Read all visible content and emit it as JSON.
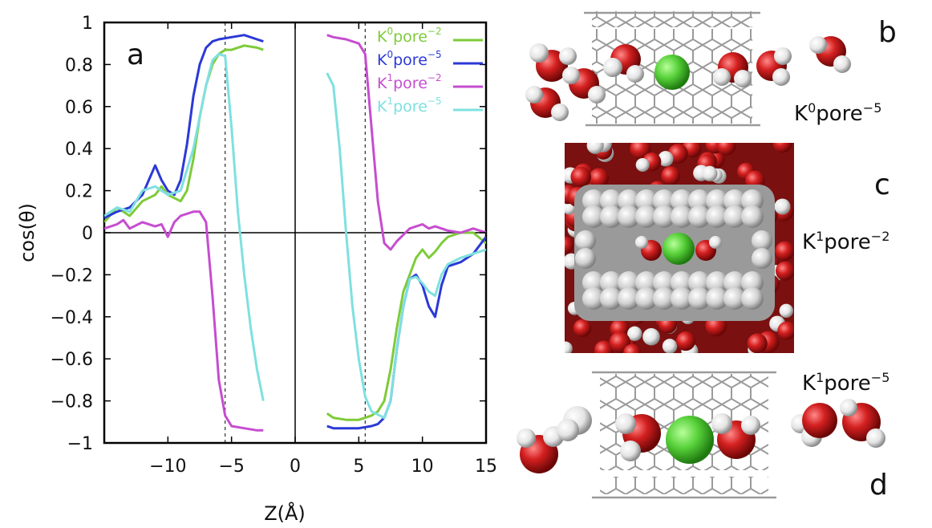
{
  "chart_data": {
    "type": "line",
    "panel_letter": "a",
    "xlabel": "Z(Å)",
    "ylabel": "cos(θ)",
    "xlim": [
      -15,
      15
    ],
    "ylim": [
      -1,
      1
    ],
    "xticks": [
      -10,
      -5,
      0,
      5,
      10,
      15
    ],
    "xtick_labels": [
      "−10",
      "−5",
      "0",
      "5",
      "10",
      "15"
    ],
    "yticks": [
      1,
      0.8,
      0.6,
      0.4,
      0.2,
      0,
      -0.2,
      -0.4,
      -0.6,
      -0.8,
      -1
    ],
    "ytick_labels": [
      "1",
      "0.8",
      "0.6",
      "0.4",
      "0.2",
      "0",
      "−0.2",
      "−0.4",
      "−0.6",
      "−0.8",
      "−1"
    ],
    "reference_lines": {
      "zero_x": 0,
      "zero_y": 0,
      "dashed_x": [
        -5.5,
        5.5
      ]
    },
    "legend_position": "top-right",
    "series": [
      {
        "name": "K0pore−2",
        "label_base": "K",
        "label_sup": "0",
        "label_rest": "pore",
        "label_sup2": "−2",
        "color": "#7ecb3a",
        "segments": [
          [
            [
              -15,
              0.05
            ],
            [
              -14,
              0.12
            ],
            [
              -13,
              0.08
            ],
            [
              -12,
              0.15
            ],
            [
              -11,
              0.18
            ],
            [
              -10.5,
              0.22
            ],
            [
              -10,
              0.18
            ],
            [
              -9,
              0.15
            ],
            [
              -8.5,
              0.2
            ],
            [
              -8,
              0.35
            ],
            [
              -7.5,
              0.55
            ],
            [
              -7,
              0.7
            ],
            [
              -6.5,
              0.8
            ],
            [
              -6,
              0.85
            ],
            [
              -5.5,
              0.87
            ],
            [
              -5,
              0.87
            ],
            [
              -4.5,
              0.88
            ],
            [
              -4,
              0.89
            ],
            [
              -3,
              0.88
            ],
            [
              -2.5,
              0.87
            ]
          ],
          [
            [
              2.5,
              -0.86
            ],
            [
              3,
              -0.88
            ],
            [
              4,
              -0.89
            ],
            [
              5,
              -0.89
            ],
            [
              6,
              -0.87
            ],
            [
              6.5,
              -0.85
            ],
            [
              7,
              -0.8
            ],
            [
              7.5,
              -0.65
            ],
            [
              8,
              -0.45
            ],
            [
              8.5,
              -0.28
            ],
            [
              9,
              -0.2
            ],
            [
              9.5,
              -0.12
            ],
            [
              10,
              -0.08
            ],
            [
              10.5,
              -0.12
            ],
            [
              11,
              -0.09
            ],
            [
              11.5,
              -0.05
            ],
            [
              12,
              -0.02
            ],
            [
              13,
              0.0
            ],
            [
              14,
              0.0
            ],
            [
              15,
              -0.05
            ]
          ]
        ]
      },
      {
        "name": "K0pore−5",
        "label_base": "K",
        "label_sup": "0",
        "label_rest": "pore",
        "label_sup2": "−5",
        "color": "#2b39d6",
        "segments": [
          [
            [
              -15,
              0.07
            ],
            [
              -14,
              0.1
            ],
            [
              -13,
              0.12
            ],
            [
              -12,
              0.18
            ],
            [
              -11.5,
              0.25
            ],
            [
              -11,
              0.32
            ],
            [
              -10.5,
              0.25
            ],
            [
              -10,
              0.2
            ],
            [
              -9.5,
              0.18
            ],
            [
              -9,
              0.25
            ],
            [
              -8.5,
              0.42
            ],
            [
              -8,
              0.65
            ],
            [
              -7.5,
              0.8
            ],
            [
              -7,
              0.88
            ],
            [
              -6.5,
              0.91
            ],
            [
              -6,
              0.92
            ],
            [
              -5,
              0.93
            ],
            [
              -4,
              0.94
            ],
            [
              -3,
              0.92
            ],
            [
              -2.5,
              0.91
            ]
          ],
          [
            [
              2.5,
              -0.92
            ],
            [
              3,
              -0.93
            ],
            [
              4,
              -0.93
            ],
            [
              5,
              -0.93
            ],
            [
              6,
              -0.92
            ],
            [
              6.5,
              -0.91
            ],
            [
              7,
              -0.88
            ],
            [
              7.5,
              -0.8
            ],
            [
              8,
              -0.55
            ],
            [
              8.5,
              -0.35
            ],
            [
              9,
              -0.22
            ],
            [
              9.5,
              -0.2
            ],
            [
              10,
              -0.25
            ],
            [
              10.5,
              -0.35
            ],
            [
              11,
              -0.4
            ],
            [
              11.5,
              -0.25
            ],
            [
              12,
              -0.16
            ],
            [
              13,
              -0.14
            ],
            [
              14,
              -0.1
            ],
            [
              15,
              -0.02
            ]
          ]
        ]
      },
      {
        "name": "K1pore−2",
        "label_base": "K",
        "label_sup": "1",
        "label_rest": "pore",
        "label_sup2": "−2",
        "color": "#c64dd0",
        "segments": [
          [
            [
              -15,
              0.02
            ],
            [
              -14,
              0.04
            ],
            [
              -13.5,
              0.06
            ],
            [
              -13,
              0.02
            ],
            [
              -12,
              0.05
            ],
            [
              -11,
              0.03
            ],
            [
              -10.5,
              0.04
            ],
            [
              -10,
              -0.02
            ],
            [
              -9.5,
              0.05
            ],
            [
              -9,
              0.08
            ],
            [
              -8,
              0.1
            ],
            [
              -7.5,
              0.1
            ],
            [
              -7,
              0.05
            ],
            [
              -6.5,
              -0.3
            ],
            [
              -6,
              -0.7
            ],
            [
              -5.5,
              -0.87
            ],
            [
              -5,
              -0.92
            ],
            [
              -4,
              -0.93
            ],
            [
              -3,
              -0.94
            ],
            [
              -2.5,
              -0.94
            ]
          ],
          [
            [
              2.5,
              0.94
            ],
            [
              3,
              0.93
            ],
            [
              4,
              0.92
            ],
            [
              5,
              0.9
            ],
            [
              5.5,
              0.85
            ],
            [
              6,
              0.5
            ],
            [
              6.5,
              0.15
            ],
            [
              7,
              -0.05
            ],
            [
              7.5,
              -0.08
            ],
            [
              8,
              -0.04
            ],
            [
              9,
              0.02
            ],
            [
              10,
              0.04
            ],
            [
              10.5,
              0.02
            ],
            [
              11,
              0.03
            ],
            [
              12,
              0.01
            ],
            [
              13,
              0.0
            ],
            [
              14,
              0.02
            ],
            [
              15,
              0.0
            ]
          ]
        ]
      },
      {
        "name": "K1pore−5",
        "label_base": "K",
        "label_sup": "1",
        "label_rest": "pore",
        "label_sup2": "−5",
        "color": "#7fe0e0",
        "segments": [
          [
            [
              -15,
              0.08
            ],
            [
              -14,
              0.12
            ],
            [
              -13,
              0.1
            ],
            [
              -12,
              0.2
            ],
            [
              -11,
              0.22
            ],
            [
              -10,
              0.18
            ],
            [
              -9,
              0.2
            ],
            [
              -8,
              0.4
            ],
            [
              -7,
              0.7
            ],
            [
              -6.5,
              0.82
            ],
            [
              -6,
              0.85
            ],
            [
              -5.5,
              0.84
            ],
            [
              -5,
              0.5
            ],
            [
              -4.5,
              0.1
            ],
            [
              -4,
              -0.2
            ],
            [
              -3.5,
              -0.45
            ],
            [
              -3,
              -0.65
            ],
            [
              -2.5,
              -0.8
            ]
          ],
          [
            [
              2.5,
              0.76
            ],
            [
              3,
              0.7
            ],
            [
              3.5,
              0.4
            ],
            [
              4,
              0.0
            ],
            [
              4.5,
              -0.35
            ],
            [
              5,
              -0.6
            ],
            [
              5.5,
              -0.78
            ],
            [
              6,
              -0.85
            ],
            [
              7,
              -0.88
            ],
            [
              7.5,
              -0.8
            ],
            [
              8,
              -0.55
            ],
            [
              8.5,
              -0.35
            ],
            [
              9,
              -0.22
            ],
            [
              9.5,
              -0.21
            ],
            [
              10,
              -0.24
            ],
            [
              10.5,
              -0.28
            ],
            [
              11,
              -0.3
            ],
            [
              11.5,
              -0.2
            ],
            [
              12,
              -0.15
            ],
            [
              13,
              -0.12
            ],
            [
              14,
              -0.1
            ],
            [
              15,
              -0.08
            ]
          ]
        ]
      }
    ]
  },
  "panels": {
    "b": {
      "letter": "b",
      "label_base": "K",
      "label_sup": "0",
      "label_rest": "pore",
      "label_sup2": "−5"
    },
    "c": {
      "letter": "c",
      "label_base": "K",
      "label_sup": "1",
      "label_rest": "pore",
      "label_sup2": "−2"
    },
    "d": {
      "letter": "d",
      "label_base": "K",
      "label_sup": "1",
      "label_rest": "pore",
      "label_sup2": "−5"
    }
  },
  "colors": {
    "oxygen": "#d42020",
    "hydrogen": "#e6e6e6",
    "ion": "#58d13a",
    "carbon": "#c8c8c8",
    "axis": "#000000"
  }
}
